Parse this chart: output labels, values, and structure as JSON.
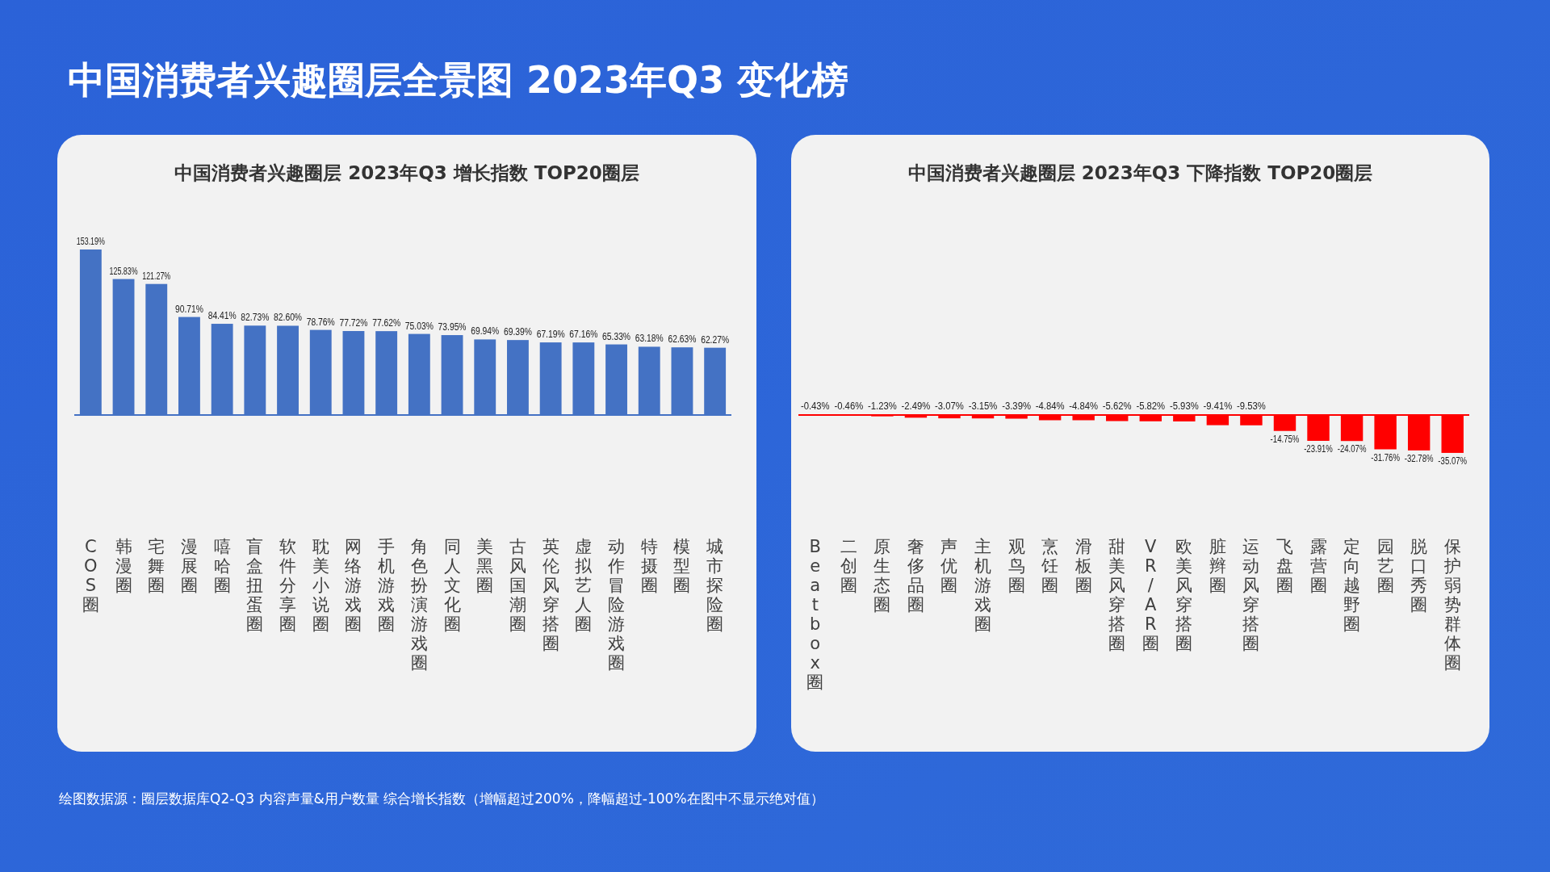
{
  "chart_data": [
    {
      "type": "other",
      "title": "中国消费者兴趣圈层全景图  2023年Q3  变化榜",
      "annotations": [
        "绘图数据源：圈层数据库Q2-Q3     内容声量&用户数量  综合增长指数（增幅超过200%，降幅超过-100%在图中不显示绝对值）"
      ]
    },
    {
      "type": "bar",
      "title": "中国消费者兴趣圈层  2023年Q3  增长指数 TOP20圈层",
      "color": "#4472c4",
      "categories": [
        "COS圈",
        "韩漫圈",
        "宅舞圈",
        "漫展圈",
        "嘻哈圈",
        "盲盒扭蛋圈",
        "软件分享圈",
        "耽美小说圈",
        "网络游戏圈",
        "手机游戏圈",
        "角色扮演游戏圈",
        "同人文化圈",
        "美黑圈",
        "古风国潮圈",
        "英伦风穿搭圈",
        "虚拟艺人圈",
        "动作冒险游戏圈",
        "特摄圈",
        "模型圈",
        "城市探险圈"
      ],
      "values": [
        153.19,
        125.83,
        121.27,
        90.71,
        84.41,
        82.73,
        82.6,
        78.76,
        77.72,
        77.62,
        75.03,
        73.95,
        69.94,
        69.39,
        67.19,
        67.16,
        65.33,
        63.18,
        62.63,
        62.27
      ],
      "value_labels": [
        "153.19%",
        "125.83%",
        "121.27%",
        "90.71%",
        "84.41%",
        "82.73%",
        "82.60%",
        "78.76%",
        "77.72%",
        "77.62%",
        "75.03%",
        "73.95%",
        "69.94%",
        "69.39%",
        "67.19%",
        "67.16%",
        "65.33%",
        "63.18%",
        "62.63%",
        "62.27%"
      ]
    },
    {
      "type": "bar",
      "title": "中国消费者兴趣圈层  2023年Q3  下降指数 TOP20圈层",
      "color": "#ff0000",
      "categories": [
        "Beatbox圈",
        "二创圈",
        "原生态圈",
        "奢侈品圈",
        "声优圈",
        "主机游戏圈",
        "观鸟圈",
        "烹饪圈",
        "滑板圈",
        "甜美风穿搭圈",
        "VR/AR圈",
        "欧美风穿搭圈",
        "脏辫圈",
        "运动风穿搭圈",
        "飞盘圈",
        "露营圈",
        "定向越野圈",
        "园艺圈",
        "脱口秀圈",
        "保护弱势群体圈"
      ],
      "values": [
        -0.43,
        -0.46,
        -1.23,
        -2.49,
        -3.07,
        -3.15,
        -3.39,
        -4.84,
        -4.84,
        -5.62,
        -5.82,
        -5.93,
        -9.41,
        -9.53,
        -14.75,
        -23.91,
        -24.07,
        -31.76,
        -32.78,
        -35.07
      ],
      "value_labels": [
        "-0.43%",
        "-0.46%",
        "-1.23%",
        "-2.49%",
        "-3.07%",
        "-3.15%",
        "-3.39%",
        "-4.84%",
        "-4.84%",
        "-5.62%",
        "-5.82%",
        "-5.93%",
        "-9.41%",
        "-9.53%",
        "-14.75%",
        "-23.91%",
        "-24.07%",
        "-31.76%",
        "-32.78%",
        "-35.07%"
      ]
    }
  ]
}
